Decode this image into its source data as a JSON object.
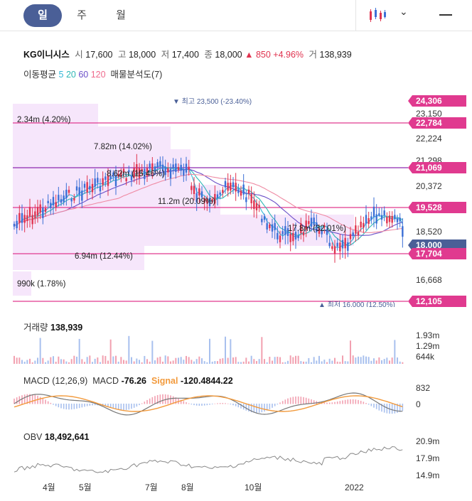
{
  "tabs": {
    "day": "일",
    "week": "주",
    "month": "월"
  },
  "quote": {
    "name": "KG이니시스",
    "open_label": "시",
    "open": "17,600",
    "high_label": "고",
    "high": "18,000",
    "low_label": "저",
    "low": "17,400",
    "close_label": "종",
    "close": "18,000",
    "change": "▲ 850 +4.96%",
    "vol_label": "거",
    "volume": "138,939"
  },
  "ma_legend": {
    "label": "이동평균",
    "ma5": "5",
    "ma20": "20",
    "ma60": "60",
    "ma120": "120",
    "profile": "매물분석도(7)"
  },
  "colors": {
    "accent": "#4a5f97",
    "up": "#e0334f",
    "down": "#3b6fd6",
    "line": "#e03a8f",
    "profile": "#f4e4fa"
  },
  "main_chart": {
    "price_tags": [
      "24,306",
      "22,784",
      "21,069",
      "19,528",
      "18,000",
      "17,704",
      "12,105"
    ],
    "axis_ticks": [
      "23,150",
      "22,224",
      "21,298",
      "20,372",
      "18,520",
      "16,668"
    ],
    "profile_labels": [
      "2.34m (4.20%)",
      "7.82m (14.02%)",
      "8.62m (15.46%)",
      "11.2m (20.09%)",
      "17.8m (32.01%)",
      "6.94m (12.44%)",
      "990k (1.78%)"
    ],
    "high_note": "▼ 최고 23,500 (-23.40%)",
    "low_note": "▲ 최저 16,000 (12.50%)"
  },
  "volume_panel": {
    "label": "거래량",
    "value": "138,939",
    "ticks": [
      "1.93m",
      "1.29m",
      "644k"
    ]
  },
  "macd_panel": {
    "label": "MACD (12,26,9)",
    "macd_label": "MACD",
    "macd_value": "-76.26",
    "signal_label": "Signal",
    "signal_value": "-120.4844.22",
    "ticks": [
      "832",
      "0"
    ]
  },
  "obv_panel": {
    "label": "OBV",
    "value": "18,492,641",
    "ticks": [
      "20.9m",
      "17.9m",
      "14.9m"
    ]
  },
  "x_axis": [
    "4월",
    "5월",
    "7월",
    "8월",
    "10월",
    "2022"
  ]
}
